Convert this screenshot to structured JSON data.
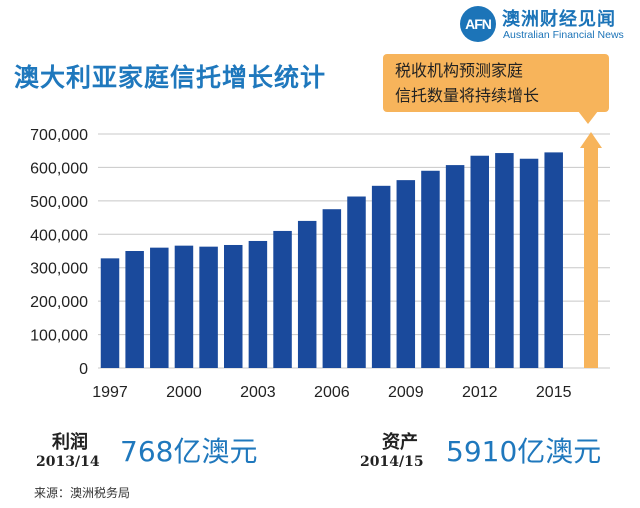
{
  "title": "澳大利亚家庭信托增长统计",
  "logo": {
    "mark": "AFN",
    "name_cn": "澳洲财经见闻",
    "name_en": "Australian Financial News"
  },
  "callout": "税收机构预测家庭\n信托数量将持续增长",
  "stats": {
    "profit_label": "利润",
    "profit_period": "2013/14",
    "profit_value": "768亿澳元",
    "assets_label": "资产",
    "assets_period": "2014/15",
    "assets_value": "5910亿澳元"
  },
  "source": "来源：澳洲税务局",
  "colors": {
    "bar": "#1a4a9c",
    "arrow": "#f7b45b",
    "accent": "#1f78bd"
  },
  "chart_data": {
    "type": "bar",
    "categories": [
      "1997",
      "1998",
      "1999",
      "2000",
      "2001",
      "2002",
      "2003",
      "2004",
      "2005",
      "2006",
      "2007",
      "2008",
      "2009",
      "2010",
      "2011",
      "2012",
      "2013",
      "2014",
      "2015"
    ],
    "values": [
      328000,
      350000,
      360000,
      366000,
      363000,
      368000,
      380000,
      410000,
      440000,
      475000,
      513000,
      545000,
      562000,
      590000,
      607000,
      635000,
      643000,
      626000,
      645000
    ],
    "title": "",
    "xlabel": "",
    "ylabel": "",
    "ylim": [
      0,
      700000
    ],
    "yticks": [
      "0",
      "100,000",
      "200,000",
      "300,000",
      "400,000",
      "500,000",
      "600,000",
      "700,000"
    ],
    "xtick_labels": [
      "1997",
      "2000",
      "2003",
      "2006",
      "2009",
      "2012",
      "2015"
    ],
    "grid": true,
    "legend": "none"
  }
}
